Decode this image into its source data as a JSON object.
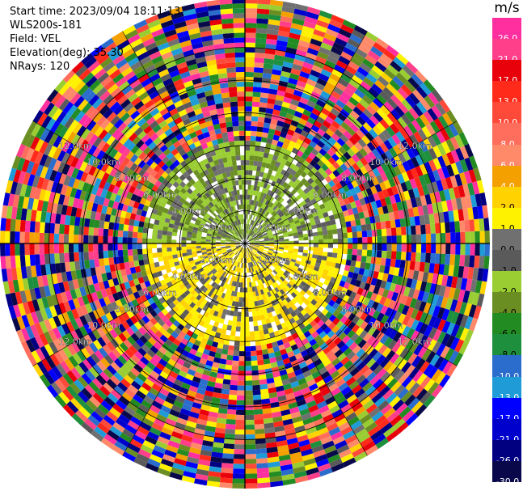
{
  "header": {
    "start_time": "Start time: 2023/09/04 18:11:13",
    "instrument": "WLS200s-181",
    "field": "Field: VEL",
    "elevation": "Elevation(deg): 35.30",
    "nrays": "NRays: 120"
  },
  "colorbar": {
    "unit": "m/s",
    "ticks": [
      "26.0",
      "21.0",
      "17.0",
      "13.0",
      "10.0",
      "8.0",
      "6.0",
      "4.0",
      "2.0",
      "1.0",
      "0.0",
      "-1.0",
      "-2.0",
      "-4.0",
      "-6.0",
      "-8.0",
      "-10.0",
      "-13.0",
      "-17.0",
      "-21.0",
      "-26.0",
      "-30.0"
    ],
    "colors": [
      "#ff2fa0",
      "#ff3f8a",
      "#e8000b",
      "#ff2a1a",
      "#ff4a3a",
      "#ff6d5c",
      "#ff8a6a",
      "#f4a000",
      "#ffd200",
      "#fff200",
      "#707070",
      "#5a5a5a",
      "#9acd32",
      "#6b8e23",
      "#228b22",
      "#1e8f3c",
      "#2a6dcc",
      "#1f9bd7",
      "#0000ff",
      "#0000cd",
      "#000080",
      "#08084a"
    ]
  },
  "chart_data": {
    "type": "ppi",
    "field": "VEL",
    "nrays": 120,
    "elevation_deg": 35.3,
    "range_rings": [
      "2.00km",
      "4.00km",
      "6.00km",
      "8.00km",
      "10.0km",
      "12.0km"
    ],
    "range_ring_km": [
      2,
      4,
      6,
      8,
      10,
      12
    ],
    "max_range_km": 15,
    "range_step_km": 0.3,
    "valid_range_km": 6.5,
    "near_field": {
      "north_half": "olive/light-green velocities around -1 to -4 m/s",
      "south_half": "yellow velocities around 1 to 2 m/s",
      "scattered": "grey 0 to -1 m/s gates"
    },
    "far_field": "noise: random colours across the full scale"
  }
}
